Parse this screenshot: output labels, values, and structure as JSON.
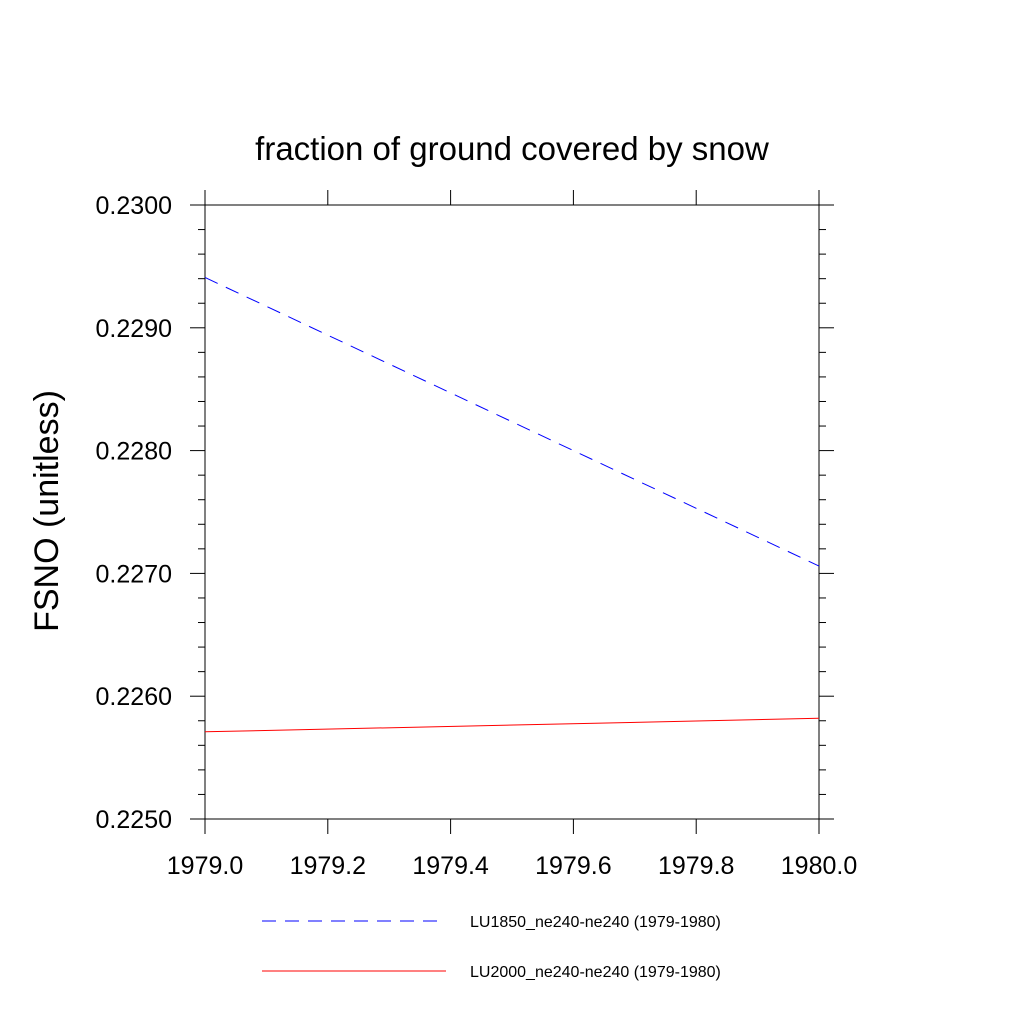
{
  "chart_data": {
    "type": "line",
    "title": "fraction of ground covered by snow",
    "xlabel": "",
    "ylabel": "FSNO  (unitless)",
    "xlim": [
      1979.0,
      1980.0
    ],
    "ylim": [
      0.225,
      0.23
    ],
    "x_ticks": [
      "1979.0",
      "1979.2",
      "1979.4",
      "1979.6",
      "1979.8",
      "1980.0"
    ],
    "y_ticks": [
      "0.2250",
      "0.2260",
      "0.2270",
      "0.2280",
      "0.2290",
      "0.2300"
    ],
    "grid": false,
    "legend_position": "bottom",
    "series": [
      {
        "name": "LU1850_ne240-ne240 (1979-1980)",
        "color": "#0000ff",
        "dash": "dashed",
        "x": [
          1979.0,
          1980.0
        ],
        "y": [
          0.22941,
          0.22706
        ]
      },
      {
        "name": "LU2000_ne240-ne240 (1979-1980)",
        "color": "#ff0000",
        "dash": "solid",
        "x": [
          1979.0,
          1980.0
        ],
        "y": [
          0.22571,
          0.22582
        ]
      }
    ]
  }
}
